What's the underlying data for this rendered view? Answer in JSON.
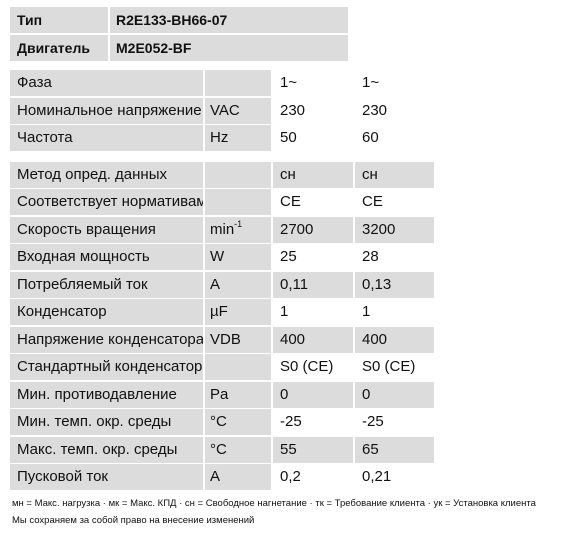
{
  "header": [
    {
      "label": "Тип",
      "value": "R2E133-BH66-07"
    },
    {
      "label": "Двигатель",
      "value": "M2E052-BF"
    }
  ],
  "group1": [
    {
      "name": "Фаза",
      "unit": "",
      "v1": "1~",
      "v2": "1~"
    },
    {
      "name": "Номинальное напряжение",
      "unit": "VAC",
      "v1": "230",
      "v2": "230"
    },
    {
      "name": "Частота",
      "unit": "Hz",
      "v1": "50",
      "v2": "60"
    }
  ],
  "group2": [
    {
      "name": "Метод опред. данных",
      "unit": "",
      "v1": "сн",
      "v2": "сн"
    },
    {
      "name": "Соответствует нормативам",
      "unit": "",
      "v1": "CE",
      "v2": "CE"
    },
    {
      "name": "Скорость вращения",
      "unit_base": "min",
      "unit_sup": "-1",
      "v1": "2700",
      "v2": "3200"
    },
    {
      "name": "Входная мощность",
      "unit": "W",
      "v1": "25",
      "v2": "28"
    },
    {
      "name": "Потребляемый ток",
      "unit": "A",
      "v1": "0,11",
      "v2": "0,13"
    },
    {
      "name": "Конденсатор",
      "unit": "µF",
      "v1": "1",
      "v2": "1"
    },
    {
      "name": "Напряжение конденсатора",
      "unit": "VDB",
      "v1": "400",
      "v2": "400"
    },
    {
      "name": "Стандартный конденсатор",
      "unit": "",
      "v1": "S0 (CE)",
      "v2": "S0 (CE)"
    },
    {
      "name": "Мин. противодавление",
      "unit": "Pa",
      "v1": "0",
      "v2": "0"
    },
    {
      "name": "Мин. темп. окр. среды",
      "unit": "°C",
      "v1": "-25",
      "v2": "-25"
    },
    {
      "name": "Макс. темп. окр. среды",
      "unit": "°C",
      "v1": "55",
      "v2": "65"
    },
    {
      "name": "Пусковой ток",
      "unit": "A",
      "v1": "0,2",
      "v2": "0,21"
    }
  ],
  "footer": {
    "legend": "мн = Макс. нагрузка · мк = Макс. КПД · сн = Свободное нагнетание · тк = Требование клиента · ук = Установка клиента",
    "note": "Мы сохраняем за собой право на внесение изменений"
  }
}
